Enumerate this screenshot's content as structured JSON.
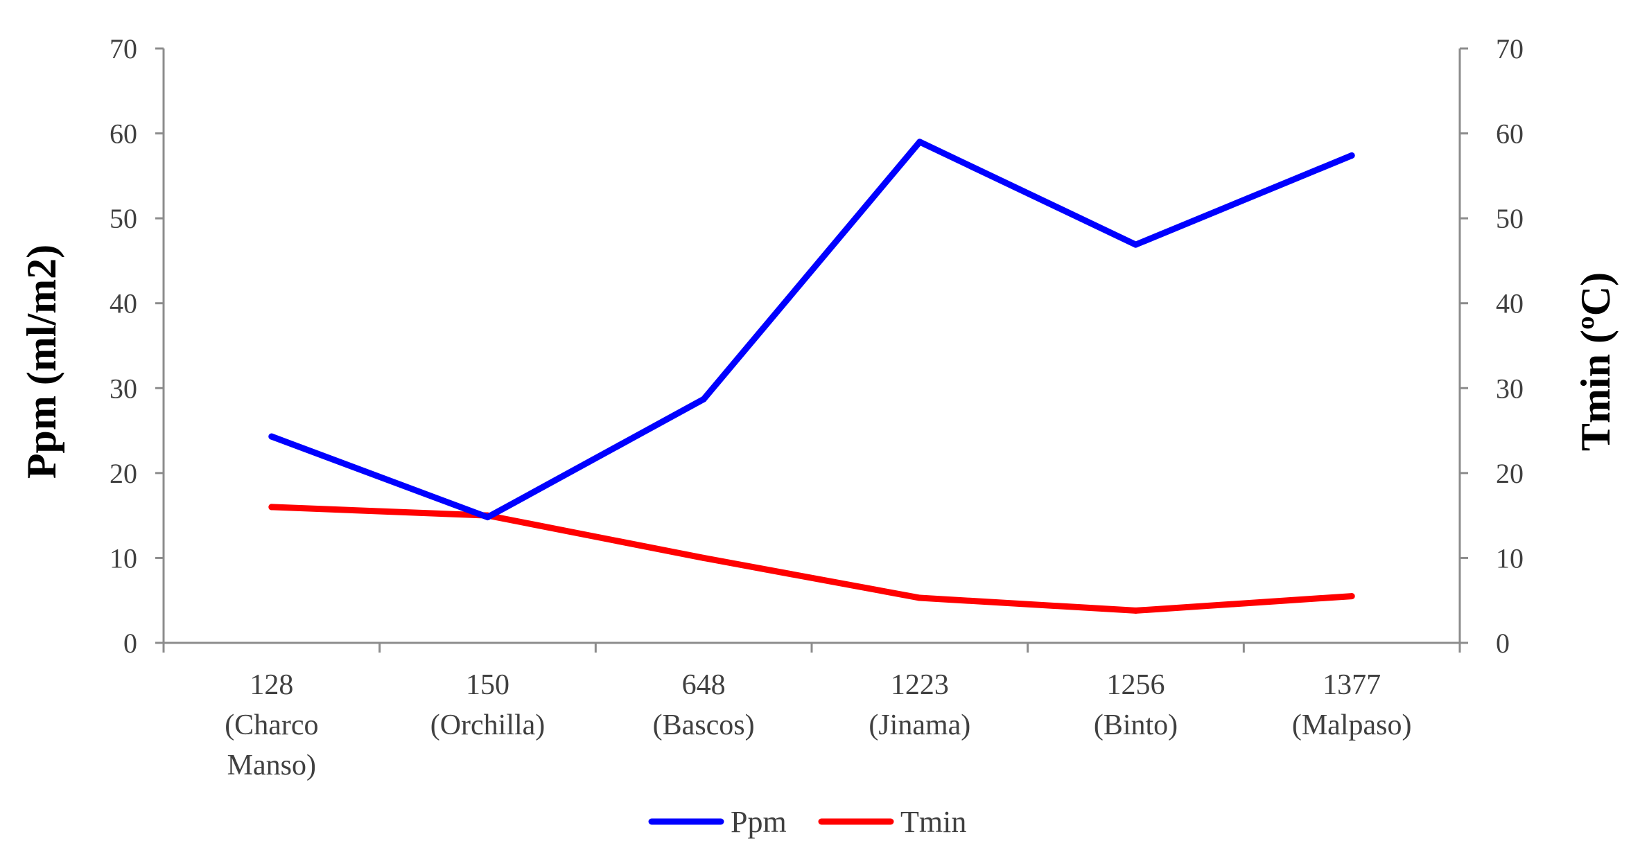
{
  "chart_data": {
    "type": "line",
    "categories": [
      [
        "128",
        "(Charco",
        "Manso)"
      ],
      [
        "150",
        "(Orchilla)"
      ],
      [
        "648",
        "(Bascos)"
      ],
      [
        "1223",
        "(Jinama)"
      ],
      [
        "1256",
        "(Binto)"
      ],
      [
        "1377",
        "(Malpaso)"
      ]
    ],
    "series": [
      {
        "name": "Ppm",
        "axis": "left",
        "color": "#0000ff",
        "values": [
          24.3,
          14.8,
          28.7,
          59.0,
          46.9,
          57.4
        ]
      },
      {
        "name": "Tmin",
        "axis": "right",
        "color": "#ff0000",
        "values": [
          16.0,
          15.0,
          10.0,
          5.3,
          3.8,
          5.5
        ]
      }
    ],
    "ylabel": "Ppm (ml/m2)",
    "y2label": "Tmin (ºC)",
    "ylim": [
      0,
      70
    ],
    "y2lim": [
      0,
      70
    ],
    "yticks": [
      "0",
      "10",
      "20",
      "30",
      "40",
      "50",
      "60",
      "70"
    ],
    "y2ticks": [
      "0",
      "10",
      "20",
      "30",
      "40",
      "50",
      "60",
      "70"
    ],
    "grid": false,
    "legend_position": "bottom"
  }
}
